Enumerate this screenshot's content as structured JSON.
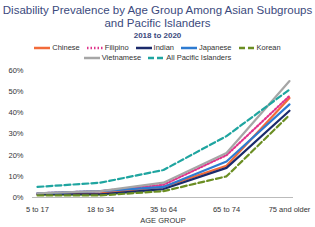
{
  "chart_data": {
    "type": "line",
    "title": "Disability Prevalence by Age Group Among Asian Subgroups and Pacific Islanders",
    "subtitle": "2018 to 2020",
    "x_label": "AGE GROUP",
    "categories": [
      "5 to 17",
      "18 to 34",
      "35 to 64",
      "65 to 74",
      "75 and older"
    ],
    "series": [
      {
        "name": "Chinese",
        "color": "#f26b3a",
        "line_style": "solid",
        "values": [
          1.5,
          2,
          5,
          15,
          47
        ]
      },
      {
        "name": "Filipino",
        "color": "#e0348b",
        "line_style": "dotted",
        "values": [
          2,
          3,
          6,
          20,
          48
        ]
      },
      {
        "name": "Indian",
        "color": "#1b2a6b",
        "line_style": "solid",
        "values": [
          1.5,
          1.5,
          4,
          14,
          41
        ]
      },
      {
        "name": "Japanese",
        "color": "#2e7bd1",
        "line_style": "solid",
        "values": [
          2,
          3,
          5,
          17,
          44
        ]
      },
      {
        "name": "Korean",
        "color": "#6b8e23",
        "line_style": "dashed",
        "values": [
          1,
          1,
          3,
          10,
          39
        ]
      },
      {
        "name": "Vietnamese",
        "color": "#a6a6a6",
        "line_style": "solid",
        "values": [
          2,
          3,
          7,
          21,
          55
        ]
      },
      {
        "name": "All Pacific Islanders",
        "color": "#1fa5a0",
        "line_style": "dashed",
        "values": [
          5,
          7,
          13,
          29,
          51
        ]
      }
    ],
    "ylim": [
      0,
      60
    ],
    "yticks": [
      {
        "value": 0,
        "label": "0%"
      },
      {
        "value": 10,
        "label": "10%"
      },
      {
        "value": 20,
        "label": "20%"
      },
      {
        "value": 30,
        "label": "30%"
      },
      {
        "value": 40,
        "label": "40%"
      },
      {
        "value": 50,
        "label": "50%"
      },
      {
        "value": 60,
        "label": "60%"
      }
    ],
    "grid": false,
    "legend": "top"
  }
}
